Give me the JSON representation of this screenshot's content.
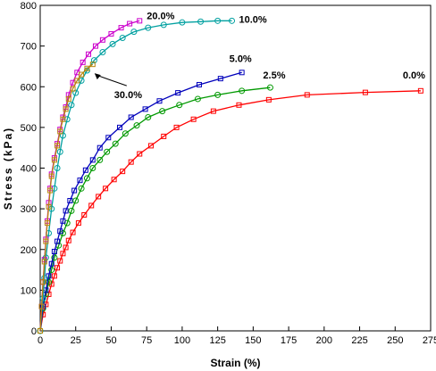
{
  "chart_data": {
    "type": "line",
    "xlabel": "Strain  (%)",
    "ylabel": "Stress  (kPa)",
    "xlim": [
      0,
      275
    ],
    "ylim": [
      0,
      800
    ],
    "xticks": [
      0,
      25,
      50,
      75,
      100,
      125,
      150,
      175,
      200,
      225,
      250,
      275
    ],
    "yticks": [
      0,
      100,
      200,
      300,
      400,
      500,
      600,
      700,
      800
    ],
    "grid": false,
    "series": [
      {
        "name": "0.0%",
        "color": "#ff0000",
        "marker": "square",
        "x": [
          0,
          2,
          4,
          6,
          8,
          10,
          12,
          14,
          16,
          18,
          20,
          23,
          27,
          31,
          36,
          41,
          46,
          52,
          58,
          64,
          70,
          78,
          87,
          96,
          108,
          122,
          140,
          161,
          188,
          229,
          268
        ],
        "y": [
          0,
          40,
          65,
          90,
          115,
          135,
          155,
          172,
          190,
          205,
          222,
          242,
          265,
          285,
          308,
          330,
          350,
          372,
          392,
          415,
          435,
          455,
          478,
          500,
          520,
          540,
          555,
          568,
          580,
          586,
          590
        ]
      },
      {
        "name": "2.5%",
        "color": "#009900",
        "marker": "circle",
        "x": [
          0,
          2,
          4,
          6,
          8,
          10,
          13,
          16,
          19,
          22,
          25,
          29,
          33,
          37,
          42,
          47,
          53,
          60,
          68,
          76,
          86,
          98,
          111,
          125,
          142,
          162
        ],
        "y": [
          0,
          55,
          90,
          120,
          150,
          180,
          210,
          240,
          265,
          295,
          320,
          350,
          375,
          400,
          420,
          440,
          460,
          485,
          505,
          525,
          540,
          555,
          570,
          580,
          590,
          598
        ]
      },
      {
        "name": "5.0%",
        "color": "#0000bb",
        "marker": "square",
        "x": [
          0,
          2,
          4,
          6,
          8,
          10,
          12,
          14,
          16,
          18,
          21,
          24,
          28,
          32,
          37,
          42,
          48,
          56,
          64,
          74,
          84,
          97,
          112,
          127,
          142
        ],
        "y": [
          0,
          60,
          100,
          135,
          165,
          195,
          220,
          245,
          270,
          295,
          320,
          345,
          370,
          395,
          420,
          450,
          475,
          500,
          525,
          545,
          565,
          585,
          605,
          620,
          635
        ]
      },
      {
        "name": "10.0%",
        "color": "#00a0a0",
        "marker": "circle",
        "x": [
          0,
          2,
          3,
          4,
          6,
          8,
          10,
          12,
          14,
          16,
          19,
          22,
          25,
          29,
          33,
          38,
          44,
          51,
          58,
          66,
          76,
          87,
          100,
          113,
          125,
          135
        ],
        "y": [
          0,
          80,
          130,
          180,
          240,
          300,
          350,
          400,
          440,
          480,
          520,
          555,
          585,
          615,
          640,
          665,
          685,
          705,
          720,
          735,
          745,
          752,
          758,
          760,
          762,
          762
        ]
      },
      {
        "name": "20.0%",
        "color": "#cc00cc",
        "marker": "square",
        "x": [
          0,
          1,
          2,
          3,
          4,
          5,
          6,
          7,
          8,
          10,
          12,
          14,
          16,
          18,
          20,
          23,
          26,
          30,
          34,
          39,
          44,
          50,
          57,
          63,
          70
        ],
        "y": [
          0,
          60,
          120,
          175,
          225,
          270,
          315,
          350,
          385,
          425,
          460,
          495,
          525,
          550,
          580,
          610,
          635,
          660,
          680,
          700,
          715,
          730,
          745,
          755,
          762
        ]
      },
      {
        "name": "30.0%",
        "color": "#b8860b",
        "marker": "square",
        "x": [
          0,
          1,
          2,
          3,
          4,
          5,
          6,
          7,
          8,
          10,
          12,
          14,
          16,
          18,
          20,
          23,
          26,
          29,
          33,
          37
        ],
        "y": [
          0,
          60,
          120,
          170,
          220,
          265,
          305,
          345,
          380,
          420,
          455,
          490,
          520,
          545,
          570,
          595,
          615,
          630,
          645,
          655
        ]
      }
    ],
    "annotations": [
      {
        "text": "20.0%",
        "series": "20.0%"
      },
      {
        "text": "10.0%",
        "series": "10.0%"
      },
      {
        "text": "5.0%",
        "series": "5.0%"
      },
      {
        "text": "2.5%",
        "series": "2.5%"
      },
      {
        "text": "0.0%",
        "series": "0.0%"
      },
      {
        "text": "30.0%",
        "series": "30.0%"
      }
    ]
  }
}
